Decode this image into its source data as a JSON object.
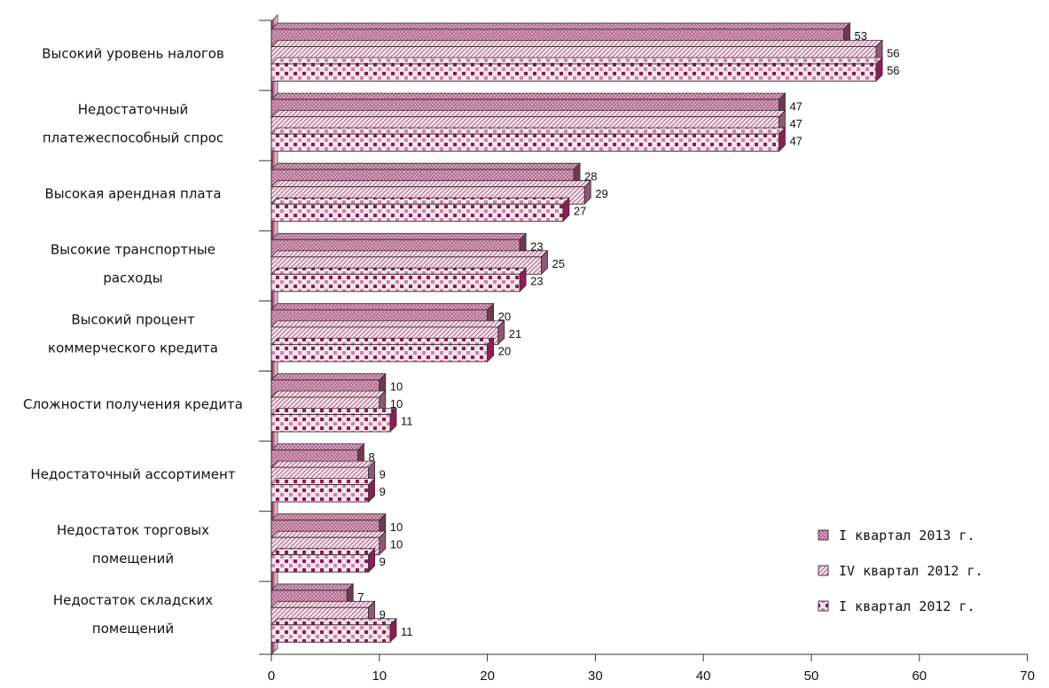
{
  "chart_data": {
    "type": "bar",
    "orientation": "horizontal",
    "categories": [
      [
        "Высокий уровень налогов"
      ],
      [
        "Недостаточный",
        "платежеспособный спрос"
      ],
      [
        "Высокая арендная плата"
      ],
      [
        "Высокие транспортные",
        "расходы"
      ],
      [
        "Высокий процент",
        "коммерческого кредита"
      ],
      [
        "Сложности получения кредита"
      ],
      [
        "Недостаточный ассортимент"
      ],
      [
        "Недостаток торговых",
        "помещений"
      ],
      [
        "Недостаток складских",
        "помещений"
      ]
    ],
    "series": [
      {
        "name": "I квартал 2013 г.",
        "pattern": "crosshatch",
        "color": "#c88aa8",
        "values": [
          53,
          47,
          28,
          23,
          20,
          10,
          8,
          10,
          7
        ]
      },
      {
        "name": "IV квартал 2012 г.",
        "pattern": "diagonal",
        "color": "#b06a8c",
        "values": [
          56,
          47,
          29,
          25,
          21,
          10,
          9,
          10,
          9
        ]
      },
      {
        "name": "I квартал 2012 г.",
        "pattern": "checker",
        "color": "#8c1d55",
        "values": [
          56,
          47,
          27,
          23,
          20,
          11,
          9,
          9,
          11
        ]
      }
    ],
    "xlim": [
      0,
      70
    ],
    "xticks": [
      "0",
      "10",
      "20",
      "30",
      "40",
      "50",
      "60",
      "70"
    ],
    "grid": false,
    "three_d": true,
    "legend_position": "bottom-right"
  }
}
